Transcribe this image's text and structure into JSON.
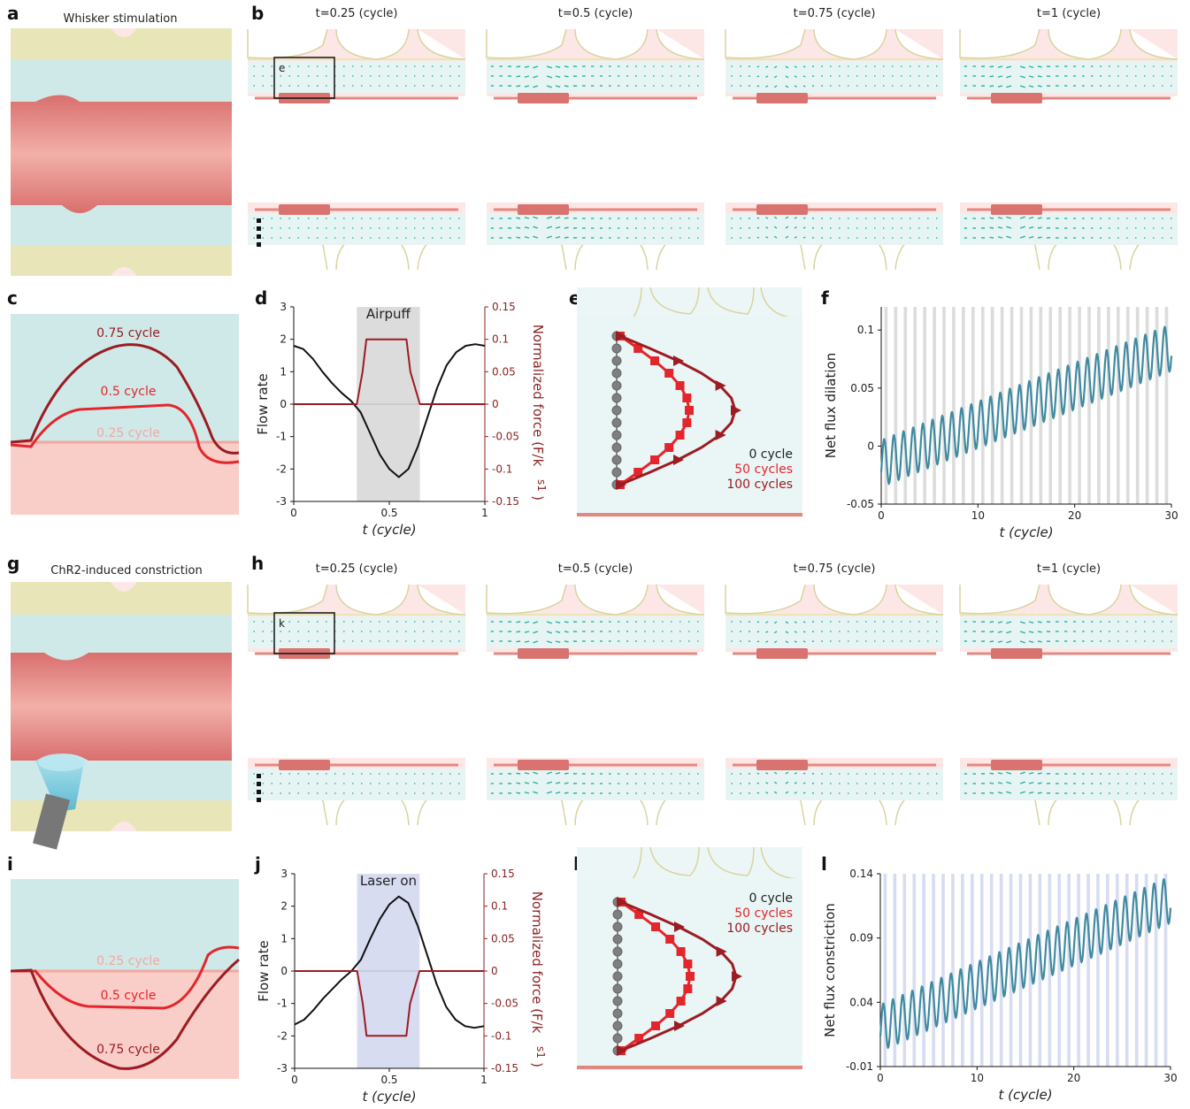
{
  "panel_labels": {
    "a": "a",
    "b": "b",
    "c": "c",
    "d": "d",
    "e": "e",
    "f": "f",
    "g": "g",
    "h": "h",
    "i": "i",
    "j": "j",
    "k": "k",
    "l": "l"
  },
  "top": {
    "title_a": "Whisker stimulation",
    "frames": [
      "t=0.25 (cycle)",
      "t=0.5 (cycle)",
      "t=0.75 (cycle)",
      "t=1 (cycle)"
    ],
    "inset_label": "e",
    "c_labels": [
      "0.75 cycle",
      "0.5 cycle",
      "0.25 cycle"
    ],
    "d_shade_label": "Airpuff",
    "e_legend": [
      "0 cycle",
      "50 cycles",
      "100 cycles"
    ]
  },
  "bottom": {
    "title_g": "ChR2-induced constriction",
    "frames": [
      "t=0.25 (cycle)",
      "t=0.5 (cycle)",
      "t=0.75 (cycle)",
      "t=1 (cycle)"
    ],
    "inset_label": "k",
    "i_labels": [
      "0.25 cycle",
      "0.5 cycle",
      "0.75 cycle"
    ],
    "j_shade_label": "Laser on",
    "k_legend": [
      "0 cycle",
      "50 cycles",
      "100 cycles"
    ]
  },
  "colors": {
    "csf": "#cfe9e9",
    "vessel": "#e08a86",
    "vessel_dark": "#c96a69",
    "tissue": "#fde7e6",
    "astro": "#e8e6b8",
    "arrow": "#2bb3a0",
    "dark_red": "#9b1c22",
    "red": "#e3262c",
    "grey": "#7f7f7f",
    "teal_line": "#3f8aa0",
    "shade_grey": "#dcdcdc",
    "shade_blue": "#d7dcf1"
  },
  "chart_data": [
    {
      "id": "d",
      "type": "line",
      "xlabel": "t (cycle)",
      "ylabel": "Flow rate",
      "ylabel_right": "Normalized force (F/k",
      "ylabel_right_sub": "s1",
      "ylim": [
        -3,
        3
      ],
      "ylim_right": [
        -0.15,
        0.15
      ],
      "xlim": [
        0,
        1
      ],
      "xticks": [
        "0",
        "0.5",
        "1"
      ],
      "yticks": [
        "-3",
        "-2",
        "-1",
        "0",
        "1",
        "2",
        "3"
      ],
      "yticks_right": [
        "-0.15",
        "-0.1",
        "-0.05",
        "0",
        "0.05",
        "0.1",
        "0.15"
      ],
      "shade": [
        0.33,
        0.66
      ],
      "series": [
        {
          "axis": "left",
          "color": "#111",
          "x": [
            0,
            0.05,
            0.1,
            0.15,
            0.2,
            0.25,
            0.3,
            0.35,
            0.4,
            0.45,
            0.5,
            0.55,
            0.6,
            0.65,
            0.7,
            0.75,
            0.8,
            0.85,
            0.9,
            0.95,
            1.0
          ],
          "y": [
            1.8,
            1.7,
            1.4,
            1.0,
            0.65,
            0.35,
            0.1,
            -0.25,
            -0.9,
            -1.55,
            -2.0,
            -2.25,
            -2.0,
            -1.3,
            -0.4,
            0.5,
            1.2,
            1.6,
            1.8,
            1.85,
            1.8
          ]
        },
        {
          "axis": "right",
          "color": "#9b1c22",
          "x": [
            0,
            0.33,
            0.36,
            0.38,
            0.43,
            0.53,
            0.59,
            0.61,
            0.66,
            1.0
          ],
          "y": [
            0,
            0,
            0.05,
            0.1,
            0.1,
            0.1,
            0.1,
            0.05,
            0,
            0
          ]
        }
      ]
    },
    {
      "id": "f",
      "type": "line",
      "xlabel": "t (cycle)",
      "ylabel": "Net flux dilation",
      "xlim": [
        0,
        30
      ],
      "ylim": [
        -0.05,
        0.12
      ],
      "xticks": [
        "0",
        "10",
        "20",
        "30"
      ],
      "yticks": [
        "-0.05",
        "0",
        "0.05",
        "0.1"
      ],
      "yticks_values": [
        -0.05,
        0,
        0.05,
        0.1
      ],
      "trend": {
        "start": -0.015,
        "end": 0.085,
        "amplitude": 0.02
      },
      "shade_cycles": [
        0,
        30
      ],
      "shade_color": "#dcdcdc"
    },
    {
      "id": "j",
      "type": "line",
      "xlabel": "t (cycle)",
      "ylabel": "Flow rate",
      "ylabel_right": "Normalized force (F/k",
      "ylabel_right_sub": "s1",
      "ylim": [
        -3,
        3
      ],
      "ylim_right": [
        -0.15,
        0.15
      ],
      "xlim": [
        0,
        1
      ],
      "xticks": [
        "0",
        "0.5",
        "1"
      ],
      "yticks": [
        "-3",
        "-2",
        "-1",
        "0",
        "1",
        "2",
        "3"
      ],
      "yticks_right": [
        "-0.15",
        "-0.1",
        "-0.05",
        "0",
        "0.05",
        "0.1",
        "0.15"
      ],
      "shade": [
        0.33,
        0.66
      ],
      "series": [
        {
          "axis": "left",
          "color": "#111",
          "x": [
            0,
            0.05,
            0.1,
            0.15,
            0.2,
            0.25,
            0.3,
            0.35,
            0.4,
            0.45,
            0.5,
            0.55,
            0.6,
            0.65,
            0.7,
            0.75,
            0.8,
            0.85,
            0.9,
            0.95,
            1.0
          ],
          "y": [
            -1.65,
            -1.5,
            -1.2,
            -0.85,
            -0.55,
            -0.25,
            0.0,
            0.35,
            1.0,
            1.6,
            2.05,
            2.3,
            2.1,
            1.4,
            0.5,
            -0.4,
            -1.1,
            -1.5,
            -1.7,
            -1.75,
            -1.7
          ]
        },
        {
          "axis": "right",
          "color": "#9b1c22",
          "x": [
            0,
            0.33,
            0.36,
            0.38,
            0.43,
            0.53,
            0.59,
            0.61,
            0.66,
            1.0
          ],
          "y": [
            0,
            0,
            -0.05,
            -0.1,
            -0.1,
            -0.1,
            -0.1,
            -0.05,
            0,
            0
          ]
        }
      ]
    },
    {
      "id": "l",
      "type": "line",
      "xlabel": "t (cycle)",
      "ylabel": "Net flux constriction",
      "xlim": [
        0,
        30
      ],
      "ylim": [
        -0.01,
        0.14
      ],
      "xticks": [
        "0",
        "10",
        "20",
        "30"
      ],
      "yticks": [
        "-0.01",
        "0.04",
        "0.09",
        "0.14"
      ],
      "yticks_values": [
        -0.01,
        0.04,
        0.09,
        0.14
      ],
      "trend": {
        "start": 0.02,
        "end": 0.12,
        "amplitude": 0.018
      },
      "shade_cycles": [
        0,
        30
      ],
      "shade_color": "#d7dcf1"
    }
  ]
}
